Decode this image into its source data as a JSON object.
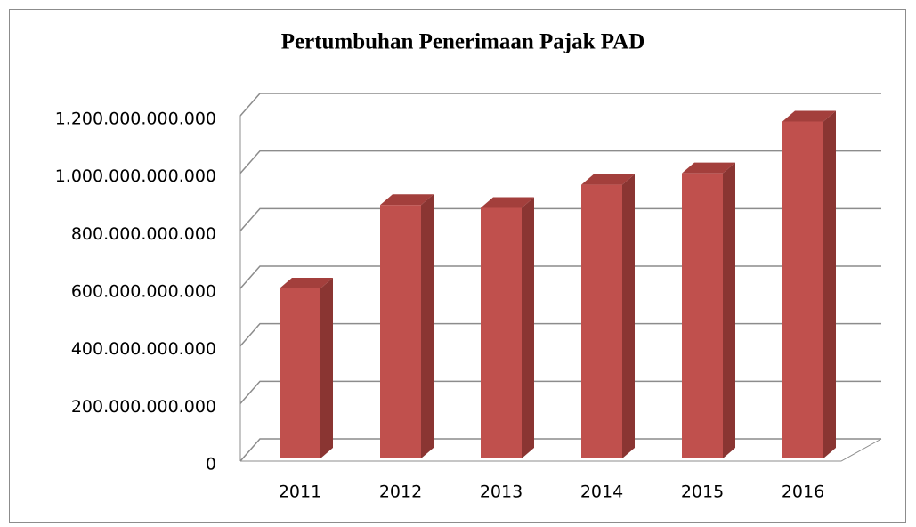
{
  "chart_data": {
    "type": "bar3d",
    "title": "Pertumbuhan Penerimaan Pajak PAD",
    "categories": [
      "2011",
      "2012",
      "2013",
      "2014",
      "2015",
      "2016"
    ],
    "values": [
      600000000000,
      890000000000,
      880000000000,
      960000000000,
      1000000000000,
      1180000000000
    ],
    "color": "#c0504d",
    "ylim": [
      0,
      1200000000000
    ],
    "yticks": [
      0,
      {
        "value": 200000000000,
        "label": "200.000.000.000"
      },
      {
        "value": 400000000000,
        "label": "400.000.000.000"
      },
      {
        "value": 600000000000,
        "label": "600.000.000.000"
      },
      {
        "value": 800000000000,
        "label": "800.000.000.000"
      },
      {
        "value": 1000000000000,
        "label": "1.000.000.000.000"
      },
      {
        "value": 1200000000000,
        "label": "1.200.000.000.000"
      }
    ],
    "grid": true
  }
}
